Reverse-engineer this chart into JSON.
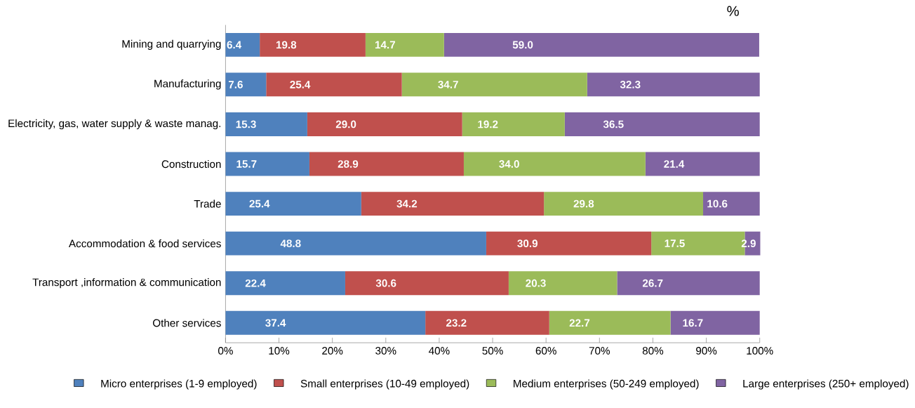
{
  "chart_data": {
    "type": "bar",
    "orientation": "horizontal",
    "stacked": true,
    "legend": "bottom",
    "categories": [
      "Mining and quarrying",
      "Manufacturing",
      "Electricity, gas, water supply & waste manag.",
      "Construction",
      "Trade",
      "Accommodation & food services",
      "Transport ,information & communication",
      "Other services"
    ],
    "series": [
      {
        "name": "Micro enterprises (1-9 employed)",
        "color": "#4f81bd",
        "values": [
          6.4,
          7.6,
          15.3,
          15.7,
          25.4,
          48.8,
          22.4,
          37.4
        ],
        "value_labels": [
          "6.4",
          "7.6",
          "15.3",
          "15.7",
          "25.4",
          "48.8",
          "22.4",
          "37.4"
        ]
      },
      {
        "name": "Small enterprises (10-49 employed)",
        "color": "#c0504d",
        "values": [
          19.8,
          25.4,
          29.0,
          28.9,
          34.2,
          30.9,
          30.6,
          23.2
        ],
        "value_labels": [
          "19.8",
          "25.4",
          "29.0",
          "28.9",
          "34.2",
          "30.9",
          "30.6",
          "23.2"
        ]
      },
      {
        "name": "Medium enterprises (50-249 employed)",
        "color": "#9bbb59",
        "values": [
          14.7,
          34.7,
          19.2,
          34.0,
          29.8,
          17.5,
          20.3,
          22.7
        ],
        "value_labels": [
          "14.7",
          "34.7",
          "19.2",
          "34.0",
          "29.8",
          "17.5",
          "20.3",
          "22.7"
        ]
      },
      {
        "name": "Large enterprises (250+ employed)",
        "color": "#8064a2",
        "values": [
          59.0,
          32.3,
          36.5,
          21.4,
          10.6,
          2.9,
          26.7,
          16.7
        ],
        "value_labels": [
          "59.0",
          "32.3",
          "36.5",
          "21.4",
          "10.6",
          "2.9",
          "26.7",
          "16.7"
        ]
      }
    ],
    "xlim": [
      0,
      100
    ],
    "xticks": [
      {
        "value": 0,
        "label": "0%"
      },
      {
        "value": 10,
        "label": "10%"
      },
      {
        "value": 20,
        "label": "20%"
      },
      {
        "value": 30,
        "label": "30%"
      },
      {
        "value": 40,
        "label": "40%"
      },
      {
        "value": 50,
        "label": "50%"
      },
      {
        "value": 60,
        "label": "60%"
      },
      {
        "value": 70,
        "label": "70%"
      },
      {
        "value": 80,
        "label": "80%"
      },
      {
        "value": 90,
        "label": "90%"
      },
      {
        "value": 100,
        "label": "100%"
      }
    ],
    "annotations": [
      "%"
    ]
  }
}
